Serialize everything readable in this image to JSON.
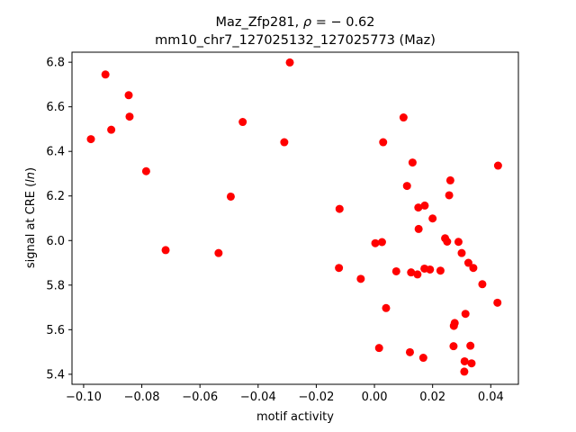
{
  "chart_data": {
    "type": "scatter",
    "title_line1_prefix": "Maz_Zfp281, ",
    "title_line1_rho_symbol": "ρ",
    "title_line1_rho_value": " = − 0.62",
    "title_line2": "mm10_chr7_127025132_127025773 (Maz)",
    "xlabel": "motif activity",
    "ylabel_prefix": "signal at CRE (",
    "ylabel_ln": "ln",
    "ylabel_suffix": ")",
    "xlim": [
      -0.104,
      0.0495
    ],
    "ylim": [
      5.355,
      6.845
    ],
    "xticks": [
      -0.1,
      -0.08,
      -0.06,
      -0.04,
      -0.02,
      0.0,
      0.02,
      0.04
    ],
    "xtick_labels": [
      "−0.10",
      "−0.08",
      "−0.06",
      "−0.04",
      "−0.02",
      "0.00",
      "0.02",
      "0.04"
    ],
    "yticks": [
      5.4,
      5.6,
      5.8,
      6.0,
      6.2,
      6.4,
      6.6,
      6.8
    ],
    "ytick_labels": [
      "5.4",
      "5.6",
      "5.8",
      "6.0",
      "6.2",
      "6.4",
      "6.6",
      "6.8"
    ],
    "marker_color": "#ff0000",
    "grid": false,
    "points": [
      [
        -0.0975,
        6.455
      ],
      [
        -0.0925,
        6.745
      ],
      [
        -0.0905,
        6.497
      ],
      [
        -0.0845,
        6.652
      ],
      [
        -0.0842,
        6.556
      ],
      [
        -0.0785,
        6.311
      ],
      [
        -0.0718,
        5.957
      ],
      [
        -0.0536,
        5.944
      ],
      [
        -0.0494,
        6.197
      ],
      [
        -0.0453,
        6.532
      ],
      [
        -0.031,
        6.441
      ],
      [
        -0.0291,
        6.799
      ],
      [
        -0.012,
        6.142
      ],
      [
        -0.0122,
        5.877
      ],
      [
        -0.0047,
        5.828
      ],
      [
        0.0003,
        5.988
      ],
      [
        0.0016,
        5.518
      ],
      [
        0.0026,
        5.993
      ],
      [
        0.003,
        6.441
      ],
      [
        0.004,
        5.697
      ],
      [
        0.0075,
        5.862
      ],
      [
        0.01,
        6.552
      ],
      [
        0.0112,
        6.245
      ],
      [
        0.0122,
        5.499
      ],
      [
        0.0126,
        5.857
      ],
      [
        0.0131,
        6.35
      ],
      [
        0.0148,
        5.848
      ],
      [
        0.0151,
        6.148
      ],
      [
        0.0152,
        6.052
      ],
      [
        0.0168,
        5.474
      ],
      [
        0.0172,
        5.874
      ],
      [
        0.0173,
        6.157
      ],
      [
        0.0191,
        5.87
      ],
      [
        0.02,
        6.099
      ],
      [
        0.0227,
        5.865
      ],
      [
        0.0243,
        6.01
      ],
      [
        0.025,
        5.995
      ],
      [
        0.0257,
        6.203
      ],
      [
        0.0261,
        6.27
      ],
      [
        0.0272,
        5.526
      ],
      [
        0.0273,
        5.617
      ],
      [
        0.0276,
        5.63
      ],
      [
        0.0289,
        5.994
      ],
      [
        0.03,
        5.944
      ],
      [
        0.0309,
        5.412
      ],
      [
        0.031,
        5.458
      ],
      [
        0.0313,
        5.671
      ],
      [
        0.0323,
        5.9
      ],
      [
        0.033,
        5.528
      ],
      [
        0.0334,
        5.449
      ],
      [
        0.034,
        5.877
      ],
      [
        0.0371,
        5.804
      ],
      [
        0.0423,
        5.721
      ],
      [
        0.0425,
        6.336
      ]
    ]
  }
}
